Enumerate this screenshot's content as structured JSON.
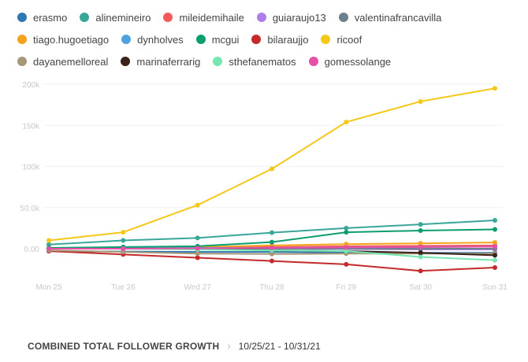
{
  "footer": {
    "title": "COMBINED TOTAL FOLLOWER GROWTH",
    "date_range": "10/25/21 - 10/31/21"
  },
  "chart_data": {
    "type": "line",
    "title": "",
    "xlabel": "",
    "ylabel": "",
    "x": [
      "Mon 25",
      "Tue 26",
      "Wed 27",
      "Thu 28",
      "Fri 29",
      "Sat 30",
      "Sun 31"
    ],
    "yticks": [
      0,
      50000,
      100000,
      150000,
      200000
    ],
    "ytick_labels": [
      "0.00",
      "50.0k",
      "100k",
      "150k",
      "200k"
    ],
    "ylim": [
      -35000,
      200000
    ],
    "grid": true,
    "legend_position": "top",
    "series": [
      {
        "name": "erasmo",
        "color": "#2f77b3",
        "values": [
          -3000,
          -3500,
          -4000,
          -4000,
          -4500,
          -5000,
          -5000
        ]
      },
      {
        "name": "alinemineiro",
        "color": "#3aa699",
        "values": [
          5000,
          10000,
          13000,
          19500,
          25000,
          29500,
          34500
        ]
      },
      {
        "name": "mileidemihaile",
        "color": "#f15a5a",
        "values": [
          0,
          500,
          1000,
          2000,
          3000,
          3500,
          4000
        ]
      },
      {
        "name": "guiaraujo13",
        "color": "#b07ee8",
        "values": [
          0,
          0,
          0,
          0,
          -500,
          -1000,
          -1000
        ]
      },
      {
        "name": "valentinafrancavilla",
        "color": "#6e7f8d",
        "values": [
          0,
          0,
          0,
          0,
          0,
          0,
          0
        ]
      },
      {
        "name": "tiago.hugoetiago",
        "color": "#f5a31c",
        "values": [
          0,
          1000,
          2000,
          4000,
          5500,
          6500,
          7500
        ]
      },
      {
        "name": "dynholves",
        "color": "#4fa3dd",
        "values": [
          0,
          500,
          1000,
          1000,
          1500,
          2000,
          2500
        ]
      },
      {
        "name": "mcgui",
        "color": "#0c9e6f",
        "values": [
          1000,
          2000,
          3000,
          8000,
          20000,
          22000,
          23500
        ]
      },
      {
        "name": "bilaraujjo",
        "color": "#c42a2a",
        "values": [
          -3000,
          -7000,
          -11000,
          -15000,
          -19000,
          -27000,
          -23000
        ]
      },
      {
        "name": "ricoof",
        "color": "#f5c719",
        "values": [
          10000,
          20000,
          53000,
          97000,
          154000,
          179000,
          195000
        ]
      },
      {
        "name": "dayanemelloreal",
        "color": "#a59878",
        "values": [
          -2000,
          -4000,
          -6000,
          -6500,
          -6000,
          -6000,
          -6000
        ]
      },
      {
        "name": "marinaferrarig",
        "color": "#3a2218",
        "values": [
          0,
          0,
          0,
          -2000,
          -3000,
          -5000,
          -8000
        ]
      },
      {
        "name": "sthefanematos",
        "color": "#76e7b0",
        "values": [
          0,
          0,
          -1000,
          -2000,
          -3000,
          -10000,
          -14000
        ]
      },
      {
        "name": "gomessolange",
        "color": "#e54fa6",
        "values": [
          0,
          0,
          500,
          1000,
          1500,
          2000,
          2500
        ]
      }
    ]
  }
}
